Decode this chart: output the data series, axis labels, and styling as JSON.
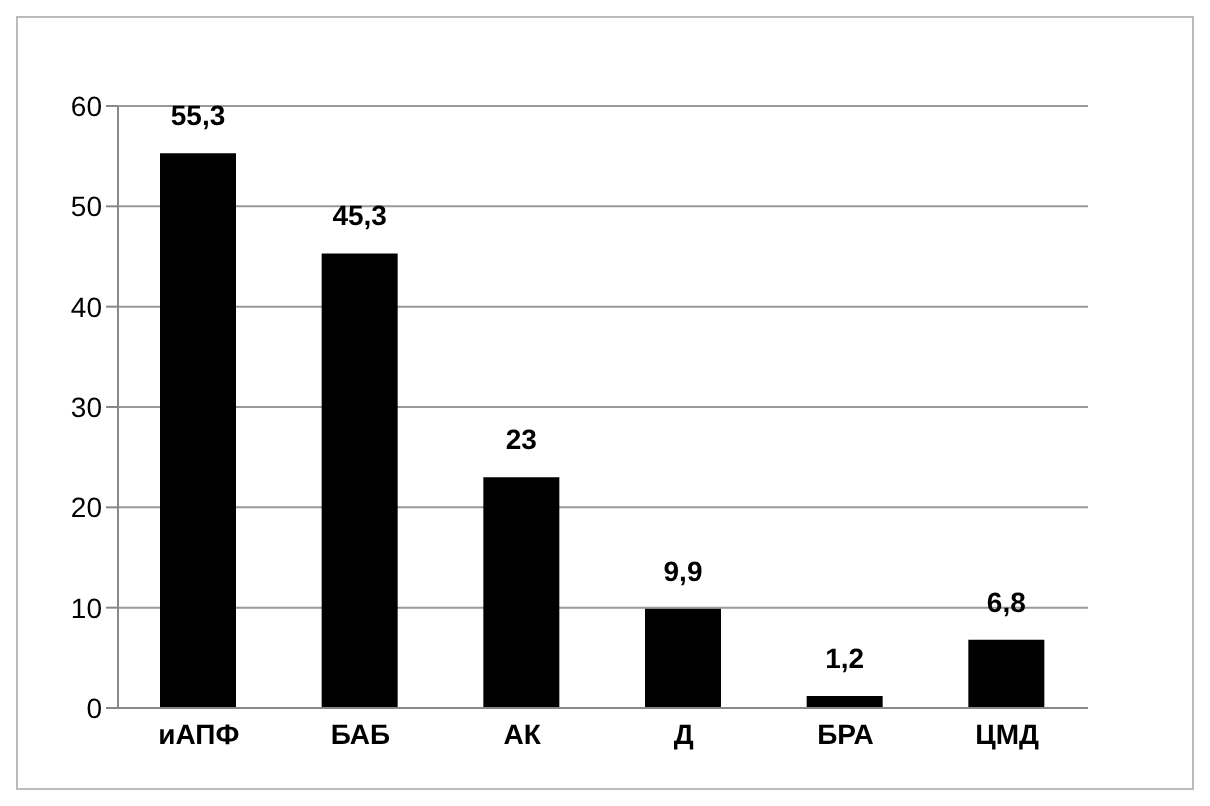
{
  "chart_data": {
    "type": "bar",
    "categories": [
      "иАПФ",
      "БАБ",
      "АК",
      "Д",
      "БРА",
      "ЦМД"
    ],
    "values": [
      55.3,
      45.3,
      23,
      9.9,
      1.2,
      6.8
    ],
    "value_labels": [
      "55,3",
      "45,3",
      "23",
      "9,9",
      "1,2",
      "6,8"
    ],
    "color": "#000000",
    "ylim": [
      0,
      60
    ],
    "yticks": [
      0,
      10,
      20,
      30,
      40,
      50,
      60
    ],
    "grid": "y"
  }
}
